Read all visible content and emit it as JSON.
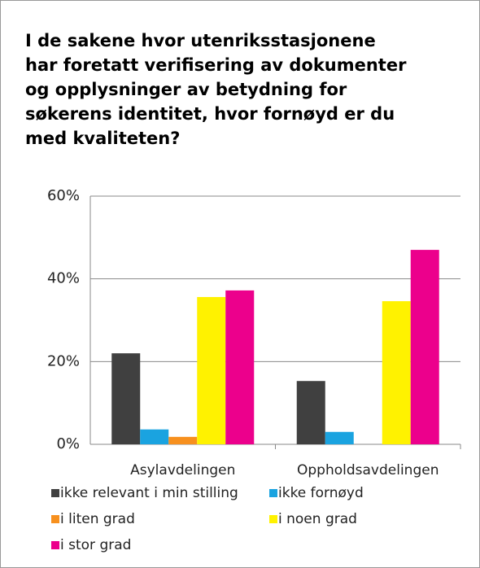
{
  "chart_data": {
    "type": "bar",
    "title": "I de sakene hvor utenriksstasjonene har foretatt verifisering av dokumenter og opplysninger av betydning for søkerens identitet, hvor fornøyd er du med kvaliteten?",
    "categories": [
      "Asylavdelingen",
      "Oppholdsavdelingen"
    ],
    "series": [
      {
        "name": "ikke relevant i min stilling",
        "color": "#404040",
        "values": [
          22,
          15.3
        ]
      },
      {
        "name": "ikke fornøyd",
        "color": "#1aa3e0",
        "values": [
          3.6,
          3
        ]
      },
      {
        "name": "i liten grad",
        "color": "#f7901e",
        "values": [
          1.8,
          0
        ]
      },
      {
        "name": "i noen grad",
        "color": "#fff200",
        "values": [
          35.6,
          34.6
        ]
      },
      {
        "name": "i stor grad",
        "color": "#ec008c",
        "values": [
          37.2,
          47
        ]
      }
    ],
    "ylim": [
      0,
      60
    ],
    "yticks": [
      {
        "value": 0,
        "label": "0%"
      },
      {
        "value": 20,
        "label": "20%"
      },
      {
        "value": 40,
        "label": "40%"
      },
      {
        "value": 60,
        "label": "60%"
      }
    ],
    "grid": true
  }
}
